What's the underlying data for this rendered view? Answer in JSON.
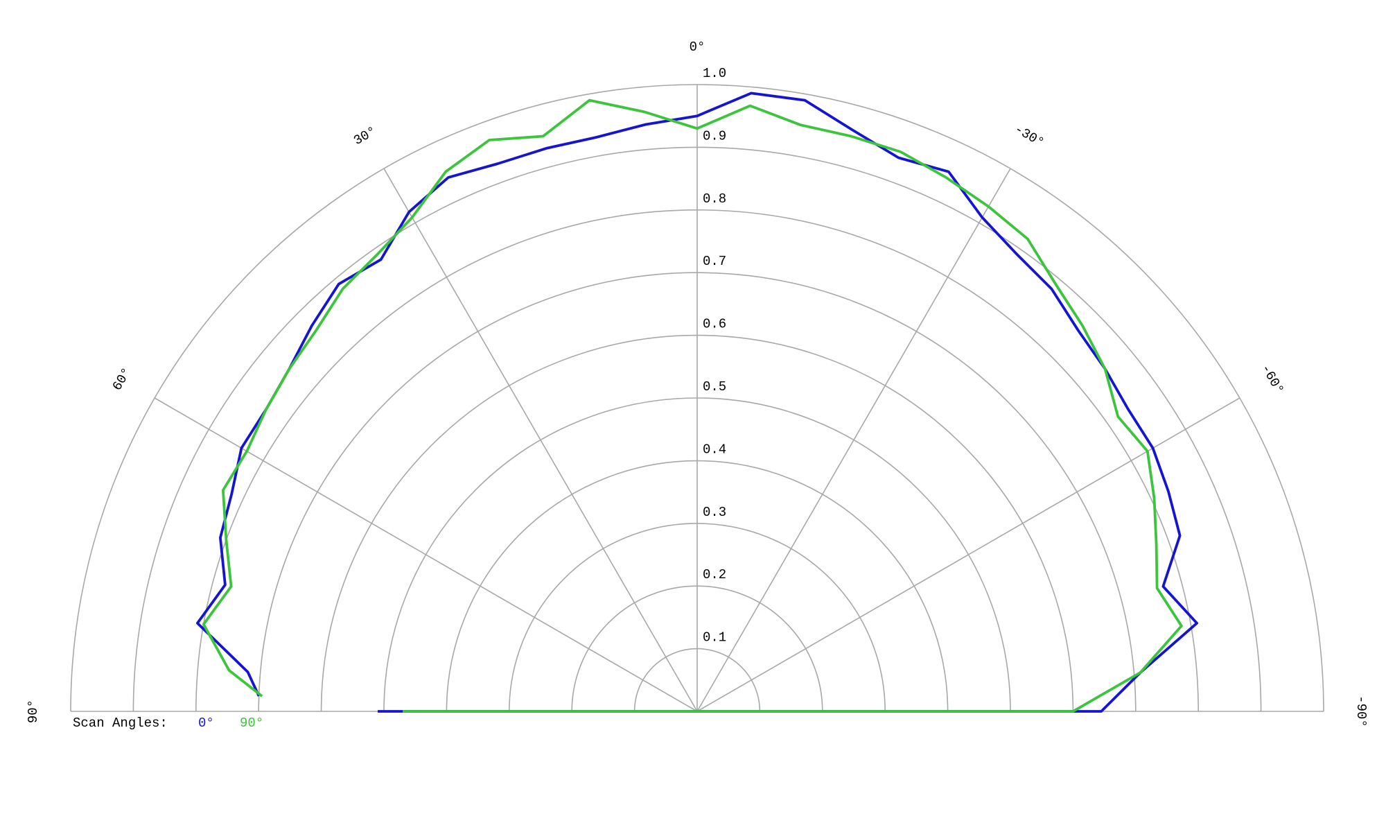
{
  "chart_data": {
    "type": "polar",
    "rlim": [
      0,
      1
    ],
    "rticks": [
      0.1,
      0.2,
      0.3,
      0.4,
      0.5,
      0.6,
      0.7,
      0.8,
      0.9,
      {
        "value": 1,
        "label": "1.0"
      }
    ],
    "xlim": [
      90,
      -90
    ],
    "xticks": [
      {
        "value": 90,
        "label": "90°"
      },
      {
        "value": 60,
        "label": "60°"
      },
      {
        "value": 30,
        "label": "30°"
      },
      {
        "value": 0,
        "label": "0°"
      },
      {
        "value": -30,
        "label": "-30°"
      },
      {
        "value": -60,
        "label": "-60°"
      },
      {
        "value": -90,
        "label": "-90°"
      }
    ],
    "grid": true,
    "legend_title": "Scan Angles:",
    "legend": "bottom-left",
    "x": [
      90,
      -90,
      -85,
      -80,
      -75,
      -70,
      -65,
      -60,
      -55,
      -50,
      -45,
      -40,
      -35,
      -30,
      -25,
      -20,
      -15,
      -10,
      -5,
      0,
      5,
      10,
      15,
      20,
      25,
      30,
      35,
      40,
      45,
      50,
      55,
      60,
      65,
      70,
      75,
      80,
      85,
      88
    ],
    "series": [
      {
        "name": "0°",
        "color": "#1414d2",
        "values": [
          0.51,
          0.645,
          0.71,
          0.81,
          0.77,
          0.82,
          0.83,
          0.84,
          0.84,
          0.85,
          0.86,
          0.88,
          0.89,
          0.91,
          0.95,
          0.94,
          0.96,
          0.99,
          0.99,
          0.95,
          0.94,
          0.93,
          0.93,
          0.93,
          0.94,
          0.92,
          0.88,
          0.89,
          0.87,
          0.85,
          0.84,
          0.84,
          0.82,
          0.81,
          0.78,
          0.81,
          0.72,
          0.7
        ]
      },
      {
        "name": "90°",
        "color": "#3cc43c",
        "values": [
          0.47,
          0.6,
          0.71,
          0.785,
          0.76,
          0.78,
          0.805,
          0.83,
          0.82,
          0.85,
          0.87,
          0.89,
          0.92,
          0.93,
          0.94,
          0.95,
          0.95,
          0.95,
          0.97,
          0.93,
          0.96,
          0.99,
          0.95,
          0.97,
          0.95,
          0.91,
          0.89,
          0.88,
          0.86,
          0.85,
          0.84,
          0.83,
          0.835,
          0.8,
          0.77,
          0.8,
          0.75,
          0.695
        ]
      }
    ]
  }
}
